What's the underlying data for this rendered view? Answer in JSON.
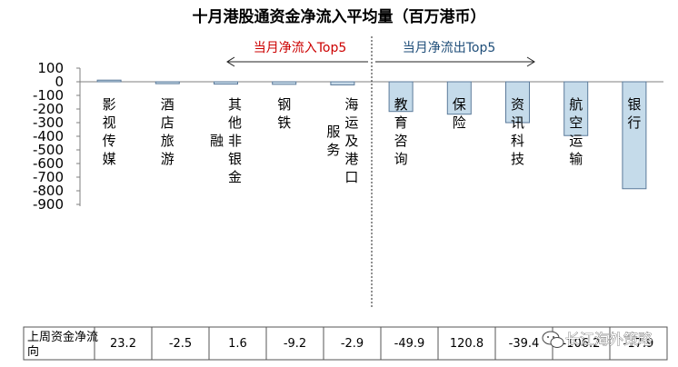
{
  "chart_data": {
    "type": "bar",
    "title": "十月港股通资金净流入平均量（百万港币）",
    "categories": [
      "影视传媒",
      "酒店旅游",
      "其他非银金融",
      "钢铁",
      "海运及港口服务",
      "教育咨询",
      "保险",
      "资讯科技",
      "航空运输",
      "银行"
    ],
    "category_lines": [
      [
        "影",
        "视",
        "传",
        "媒"
      ],
      [
        "酒",
        "店",
        "旅",
        "游"
      ],
      [
        "其",
        "他",
        "非",
        "银",
        "金",
        "融"
      ],
      [
        "钢",
        "铁"
      ],
      [
        "海",
        "运",
        "及",
        "港",
        "口",
        "服",
        "务"
      ],
      [
        "教",
        "育",
        "咨",
        "询"
      ],
      [
        "保",
        "险"
      ],
      [
        "资",
        "讯",
        "科",
        "技"
      ],
      [
        "航",
        "空",
        "运",
        "输"
      ],
      [
        "银",
        "行"
      ]
    ],
    "values": [
      12,
      -14,
      -17,
      -19,
      -23,
      -218,
      -238,
      -300,
      -395,
      -785
    ],
    "yticks": [
      100,
      0,
      -100,
      -200,
      -300,
      -400,
      -500,
      -600,
      -700,
      -800,
      -900
    ],
    "ylim": [
      -900,
      100
    ],
    "colors": {
      "inflow_bar": "#c9dcea",
      "outflow_bar": "#c5dbea",
      "bar_border": "#5b7a9a",
      "inflow_text": "#cc0000",
      "outflow_text": "#1f4e79"
    },
    "annotations": {
      "inflow_top5": "当月净流入Top5",
      "outflow_top5": "当月净流出Top5"
    },
    "table": {
      "row_label": "上周资金净流向",
      "values": [
        "23.2",
        "-2.5",
        "1.6",
        "-9.2",
        "-2.9",
        "-49.9",
        "120.8",
        "-39.4",
        "-106.2",
        "-17.9"
      ]
    }
  },
  "watermark": {
    "text": "长江海外策略",
    "icon": "wechat-icon"
  }
}
